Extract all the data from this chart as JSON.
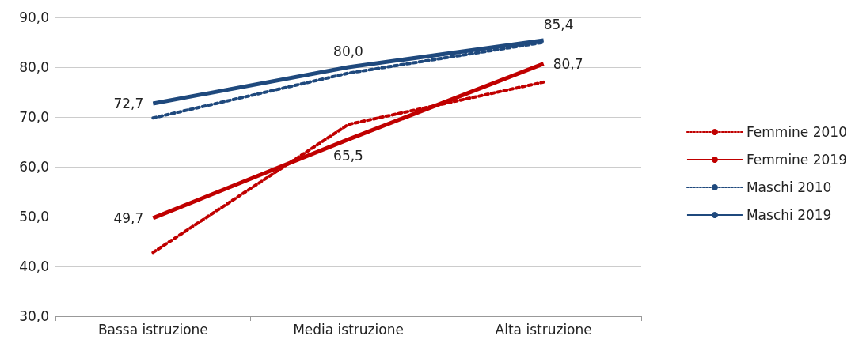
{
  "chart_data": {
    "type": "line",
    "categories": [
      "Bassa istruzione",
      "Media istruzione",
      "Alta istruzione"
    ],
    "series": [
      {
        "name": "Femmine 2010",
        "color": "#c00000",
        "line_style": "dotted",
        "values": [
          42.8,
          68.5,
          77.0
        ]
      },
      {
        "name": "Femmine 2019",
        "color": "#c00000",
        "line_style": "solid",
        "values": [
          49.7,
          65.5,
          80.7
        ],
        "value_labels": [
          "49,7",
          "65,5",
          "80,7"
        ]
      },
      {
        "name": "Maschi 2010",
        "color": "#1f497d",
        "line_style": "dotted",
        "values": [
          69.8,
          78.8,
          85.0
        ]
      },
      {
        "name": "Maschi 2019",
        "color": "#1f497d",
        "line_style": "solid",
        "values": [
          72.7,
          80.0,
          85.4
        ],
        "value_labels": [
          "72,7",
          "80,0",
          "85,4"
        ]
      }
    ],
    "ylim": [
      30,
      90
    ],
    "yticks": [
      {
        "value": 30,
        "label": "30,0"
      },
      {
        "value": 40,
        "label": "40,0"
      },
      {
        "value": 50,
        "label": "50,0"
      },
      {
        "value": 60,
        "label": "60,0"
      },
      {
        "value": 70,
        "label": "70,0"
      },
      {
        "value": 80,
        "label": "80,0"
      },
      {
        "value": 90,
        "label": "90,0"
      }
    ],
    "grid": "y",
    "legend": "right",
    "marker": "none"
  }
}
